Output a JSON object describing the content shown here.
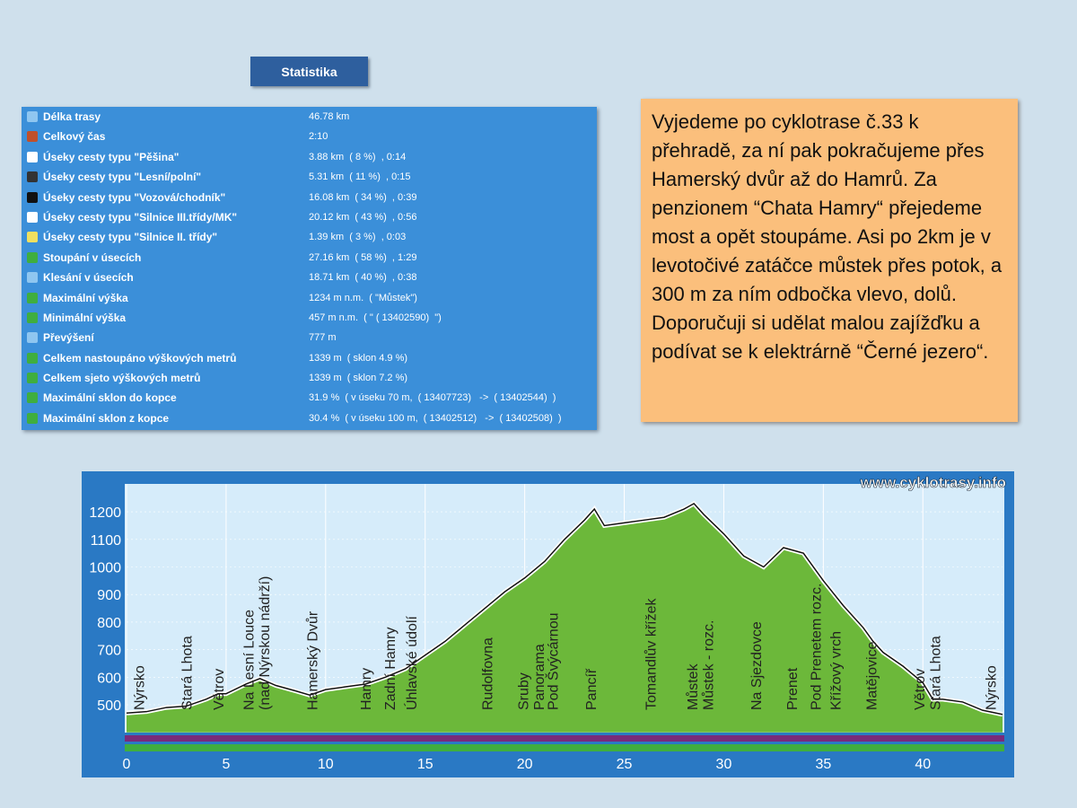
{
  "button": "Statistika",
  "stats": [
    [
      "Délka trasy",
      "46.78 km"
    ],
    [
      "Celkový čas",
      "2:10"
    ],
    [
      "Úseky cesty typu \"Pěšina\"",
      "3.88 km  ( 8 %)  , 0:14"
    ],
    [
      "Úseky cesty typu \"Lesní/polní\"",
      "5.31 km  ( 11 %)  , 0:15"
    ],
    [
      "Úseky cesty typu \"Vozová/chodník\"",
      "16.08 km  ( 34 %)  , 0:39"
    ],
    [
      "Úseky cesty typu \"Silnice III.třídy/MK\"",
      "20.12 km  ( 43 %)  , 0:56"
    ],
    [
      "Úseky cesty typu \"Silnice II. třídy\"",
      "1.39 km  ( 3 %)  , 0:03"
    ],
    [
      "Stoupání v úsecích",
      "27.16 km  ( 58 %)  , 1:29"
    ],
    [
      "Klesání v úsecích",
      "18.71 km  ( 40 %)  , 0:38"
    ],
    [
      "Maximální výška",
      "1234 m n.m.  ( \"Můstek\")"
    ],
    [
      "Minimální výška",
      "457 m n.m.  ( \" ( 13402590)  \")"
    ],
    [
      "Převýšení",
      "777 m"
    ],
    [
      "Celkem nastoupáno výškových metrů",
      "1339 m  ( sklon 4.9 %)"
    ],
    [
      "Celkem sjeto výškových metrů",
      "1339 m  ( sklon 7.2 %)"
    ],
    [
      "Maximální sklon do kopce",
      "31.9 %  ( v úseku 70 m,  ( 13407723)   ->  ( 13402544)  )"
    ],
    [
      "Maximální sklon z kopce",
      "30.4 %  ( v úseku 100 m,  ( 13402512)   ->  ( 13402508)  )"
    ]
  ],
  "description": "Vyjedeme po cyklotrase č.33  k přehradě, za ní pak pokračujeme přes Hamerský dvůr až do Hamrů. Za penzionem “Chata Hamry“ přejedeme most a opět stoupáme. Asi po 2km je v levotočivé zatáčce můstek přes potok, a 300 m za ním odbočka vlevo, dolů. Doporučuji si udělat malou zajížďku a podívat se k elektrárně “Černé jezero“.",
  "chart_data": {
    "type": "area",
    "watermark": "www.cyklotrasy.info",
    "color": "#6cb83a",
    "line_color": "#111111",
    "x": [
      0,
      1,
      2,
      3,
      4,
      4.6,
      5,
      6,
      6.7,
      7.5,
      8.5,
      9.2,
      10,
      11,
      12,
      13,
      14,
      15,
      16,
      17,
      18,
      19,
      20,
      21,
      22,
      23,
      23.5,
      24,
      25,
      26,
      27,
      28,
      28.5,
      29,
      30,
      31,
      32,
      33,
      34,
      35,
      36,
      37,
      37.5,
      38,
      39,
      40,
      40.5,
      41,
      42,
      43,
      44
    ],
    "values": [
      470,
      475,
      490,
      495,
      520,
      540,
      540,
      575,
      595,
      570,
      550,
      535,
      555,
      565,
      575,
      600,
      630,
      680,
      730,
      790,
      850,
      910,
      960,
      1020,
      1100,
      1170,
      1210,
      1150,
      1160,
      1170,
      1180,
      1210,
      1230,
      1190,
      1120,
      1040,
      1000,
      1070,
      1050,
      950,
      860,
      780,
      730,
      690,
      640,
      580,
      520,
      520,
      510,
      480,
      465
    ],
    "xlim": [
      0,
      44
    ],
    "ylim": [
      400,
      1300
    ],
    "xticks": [
      0,
      5,
      10,
      15,
      20,
      25,
      30,
      35,
      40
    ],
    "yticks": [
      500,
      600,
      700,
      800,
      900,
      1000,
      1100,
      1200
    ],
    "waypoints": [
      {
        "x": 0.6,
        "label": "Nýrsko"
      },
      {
        "x": 3.0,
        "label": "Stará Lhota"
      },
      {
        "x": 4.6,
        "label": "Větrov"
      },
      {
        "x": 6.1,
        "label": "Na Lesní Louce"
      },
      {
        "x": 6.9,
        "label": "(nad Nýrskou nádrží)"
      },
      {
        "x": 9.3,
        "label": "Hamerský Dvůr"
      },
      {
        "x": 12.0,
        "label": "Hamry"
      },
      {
        "x": 13.2,
        "label": "Zadní Hamry"
      },
      {
        "x": 14.3,
        "label": "Úhlavské údolí"
      },
      {
        "x": 18.1,
        "label": "Rudolfovna"
      },
      {
        "x": 19.9,
        "label": "Sruby"
      },
      {
        "x": 20.7,
        "label": "Panorama"
      },
      {
        "x": 21.4,
        "label": "Pod Švýcárnou"
      },
      {
        "x": 23.3,
        "label": "Pancíř"
      },
      {
        "x": 26.3,
        "label": "Tomandlův křížek"
      },
      {
        "x": 28.4,
        "label": "Můstek"
      },
      {
        "x": 29.2,
        "label": "Můstek - rozc."
      },
      {
        "x": 31.6,
        "label": "Na Sjezdovce"
      },
      {
        "x": 33.4,
        "label": "Prenet"
      },
      {
        "x": 34.6,
        "label": "Pod Prenetem rozc."
      },
      {
        "x": 35.6,
        "label": "Křížový vrch"
      },
      {
        "x": 37.4,
        "label": "Matějovice"
      },
      {
        "x": 39.8,
        "label": "Větrov"
      },
      {
        "x": 40.6,
        "label": "Stará Lhota"
      },
      {
        "x": 43.4,
        "label": "Nýrsko"
      }
    ]
  }
}
